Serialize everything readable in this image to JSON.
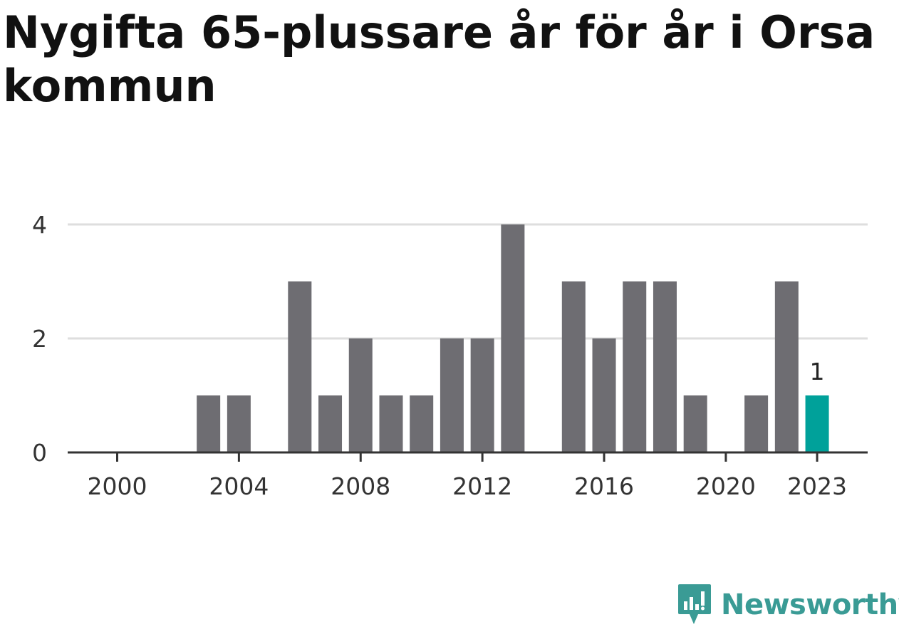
{
  "title": "Nygifta 65-plussare år för år i Orsa kommun",
  "chart_data": {
    "type": "bar",
    "title": "Nygifta 65-plussare år för år i Orsa kommun",
    "categories": [
      2000,
      2001,
      2002,
      2003,
      2004,
      2005,
      2006,
      2007,
      2008,
      2009,
      2010,
      2011,
      2012,
      2013,
      2014,
      2015,
      2016,
      2017,
      2018,
      2019,
      2020,
      2021,
      2022,
      2023
    ],
    "values": [
      0,
      0,
      0,
      1,
      1,
      0,
      3,
      1,
      2,
      1,
      1,
      2,
      2,
      4,
      0,
      3,
      2,
      3,
      3,
      1,
      0,
      1,
      3,
      1
    ],
    "x_ticks": [
      "2000",
      "2004",
      "2008",
      "2012",
      "2016",
      "2020",
      "2023"
    ],
    "y_ticks": [
      "0",
      "2",
      "4"
    ],
    "ylim": [
      0,
      4
    ],
    "xlabel": "",
    "ylabel": "",
    "highlight": {
      "category": 2023,
      "label": "1"
    },
    "colors": {
      "bar": "#6e6d72",
      "highlight": "#00a19a",
      "grid": "#dedede",
      "axis": "#333333"
    }
  },
  "logo": {
    "text": "Newsworthy",
    "icon": "newsworthy-logo-icon",
    "color": "#3a9b95"
  }
}
